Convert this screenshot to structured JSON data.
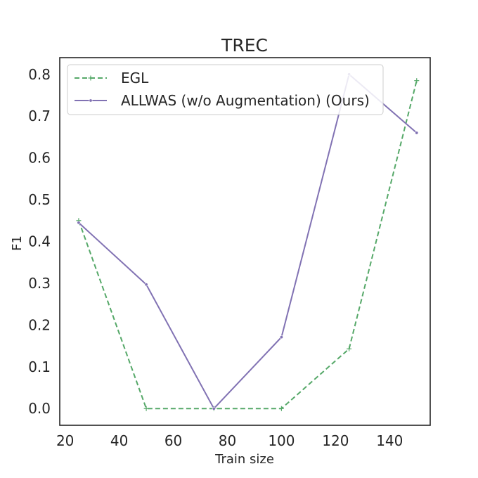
{
  "chart_data": {
    "type": "line",
    "title": "TREC",
    "xlabel": "Train size",
    "ylabel": "F1",
    "xlim": [
      18,
      155
    ],
    "ylim": [
      -0.04,
      0.84
    ],
    "xticks": [
      20,
      40,
      60,
      80,
      100,
      120,
      140
    ],
    "yticks": [
      0.0,
      0.1,
      0.2,
      0.3,
      0.4,
      0.5,
      0.6,
      0.7,
      0.8
    ],
    "xtick_labels": [
      "20",
      "40",
      "60",
      "80",
      "100",
      "120",
      "140"
    ],
    "ytick_labels": [
      "0.0",
      "0.1",
      "0.2",
      "0.3",
      "0.4",
      "0.5",
      "0.6",
      "0.7",
      "0.8"
    ],
    "grid": false,
    "legend_position": "top-left",
    "series": [
      {
        "name": "EGL",
        "color": "#55a868",
        "line_style": "dashed",
        "marker": "plus",
        "x": [
          25,
          50,
          75,
          100,
          125,
          150
        ],
        "y": [
          0.45,
          0.0,
          0.0,
          0.0,
          0.143,
          0.785
        ]
      },
      {
        "name": "ALLWAS (w/o Augmentation) (Ours)",
        "color": "#8172b3",
        "line_style": "solid",
        "marker": "dot",
        "x": [
          25,
          50,
          75,
          100,
          125,
          150
        ],
        "y": [
          0.445,
          0.297,
          0.0,
          0.171,
          0.8,
          0.66
        ]
      }
    ]
  }
}
